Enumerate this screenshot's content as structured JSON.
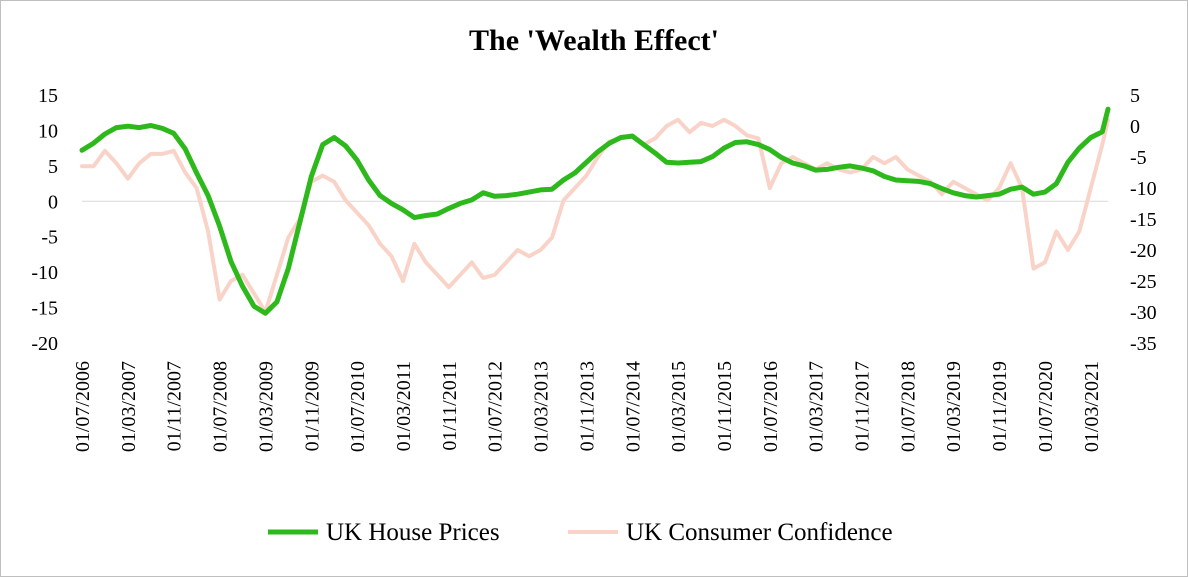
{
  "chart_data": {
    "type": "line",
    "title": "The 'Wealth Effect'",
    "xlabel": "",
    "ylabel_left": "",
    "ylabel_right": "",
    "x_tick_labels": [
      "01/07/2006",
      "01/03/2007",
      "01/11/2007",
      "01/07/2008",
      "01/03/2009",
      "01/11/2009",
      "01/07/2010",
      "01/03/2011",
      "01/11/2011",
      "01/07/2012",
      "01/03/2013",
      "01/11/2013",
      "01/07/2014",
      "01/03/2015",
      "01/11/2015",
      "01/07/2016",
      "01/03/2017",
      "01/11/2017",
      "01/07/2018",
      "01/03/2019",
      "01/11/2019",
      "01/07/2020",
      "01/03/2021"
    ],
    "x_range": [
      "2006-07",
      "2021-06"
    ],
    "y_left": {
      "ticks": [
        15,
        10,
        5,
        0,
        -5,
        -10,
        -15,
        -20
      ],
      "ylim": [
        -20,
        15
      ]
    },
    "y_right": {
      "ticks": [
        5,
        0,
        -5,
        -10,
        -15,
        -20,
        -25,
        -30,
        -35
      ],
      "ylim": [
        -35,
        5
      ]
    },
    "grid": false,
    "legend_position": "bottom",
    "series": [
      {
        "name": "UK House Prices",
        "axis": "left",
        "color": "#2db81b",
        "points": [
          [
            "2006-07",
            7.2
          ],
          [
            "2006-09",
            8.2
          ],
          [
            "2006-11",
            9.5
          ],
          [
            "2007-01",
            10.4
          ],
          [
            "2007-03",
            10.6
          ],
          [
            "2007-05",
            10.4
          ],
          [
            "2007-07",
            10.7
          ],
          [
            "2007-09",
            10.3
          ],
          [
            "2007-11",
            9.6
          ],
          [
            "2008-01",
            7.4
          ],
          [
            "2008-03",
            4.0
          ],
          [
            "2008-05",
            0.8
          ],
          [
            "2008-07",
            -3.5
          ],
          [
            "2008-09",
            -8.5
          ],
          [
            "2008-11",
            -12.0
          ],
          [
            "2009-01",
            -14.8
          ],
          [
            "2009-03",
            -15.8
          ],
          [
            "2009-05",
            -14.2
          ],
          [
            "2009-07",
            -9.5
          ],
          [
            "2009-09",
            -3.0
          ],
          [
            "2009-11",
            3.5
          ],
          [
            "2010-01",
            8.0
          ],
          [
            "2010-03",
            9.0
          ],
          [
            "2010-05",
            7.8
          ],
          [
            "2010-07",
            5.8
          ],
          [
            "2010-09",
            3.0
          ],
          [
            "2010-11",
            0.8
          ],
          [
            "2011-01",
            -0.3
          ],
          [
            "2011-03",
            -1.2
          ],
          [
            "2011-05",
            -2.3
          ],
          [
            "2011-07",
            -2.0
          ],
          [
            "2011-09",
            -1.8
          ],
          [
            "2011-11",
            -1.0
          ],
          [
            "2012-01",
            -0.3
          ],
          [
            "2012-03",
            0.2
          ],
          [
            "2012-05",
            1.2
          ],
          [
            "2012-07",
            0.7
          ],
          [
            "2012-09",
            0.8
          ],
          [
            "2012-11",
            1.0
          ],
          [
            "2013-01",
            1.3
          ],
          [
            "2013-03",
            1.6
          ],
          [
            "2013-05",
            1.7
          ],
          [
            "2013-07",
            3.0
          ],
          [
            "2013-09",
            4.0
          ],
          [
            "2013-11",
            5.5
          ],
          [
            "2014-01",
            7.0
          ],
          [
            "2014-03",
            8.2
          ],
          [
            "2014-05",
            9.0
          ],
          [
            "2014-07",
            9.2
          ],
          [
            "2014-09",
            8.0
          ],
          [
            "2014-11",
            6.8
          ],
          [
            "2015-01",
            5.5
          ],
          [
            "2015-03",
            5.4
          ],
          [
            "2015-05",
            5.5
          ],
          [
            "2015-07",
            5.6
          ],
          [
            "2015-09",
            6.3
          ],
          [
            "2015-11",
            7.5
          ],
          [
            "2016-01",
            8.3
          ],
          [
            "2016-03",
            8.4
          ],
          [
            "2016-05",
            8.0
          ],
          [
            "2016-07",
            7.3
          ],
          [
            "2016-09",
            6.2
          ],
          [
            "2016-11",
            5.4
          ],
          [
            "2017-01",
            5.0
          ],
          [
            "2017-03",
            4.4
          ],
          [
            "2017-05",
            4.5
          ],
          [
            "2017-07",
            4.8
          ],
          [
            "2017-09",
            5.0
          ],
          [
            "2017-11",
            4.7
          ],
          [
            "2018-01",
            4.3
          ],
          [
            "2018-03",
            3.5
          ],
          [
            "2018-05",
            3.0
          ],
          [
            "2018-07",
            2.9
          ],
          [
            "2018-09",
            2.8
          ],
          [
            "2018-11",
            2.5
          ],
          [
            "2019-01",
            1.8
          ],
          [
            "2019-03",
            1.2
          ],
          [
            "2019-05",
            0.8
          ],
          [
            "2019-07",
            0.6
          ],
          [
            "2019-09",
            0.8
          ],
          [
            "2019-11",
            1.0
          ],
          [
            "2020-01",
            1.7
          ],
          [
            "2020-03",
            2.0
          ],
          [
            "2020-05",
            1.0
          ],
          [
            "2020-07",
            1.3
          ],
          [
            "2020-09",
            2.5
          ],
          [
            "2020-11",
            5.5
          ],
          [
            "2021-01",
            7.5
          ],
          [
            "2021-03",
            9.0
          ],
          [
            "2021-05",
            9.8
          ],
          [
            "2021-06",
            13.0
          ]
        ]
      },
      {
        "name": "UK Consumer Confidence",
        "axis": "right",
        "color": "#f9d3c8",
        "points": [
          [
            "2006-07",
            -6.5
          ],
          [
            "2006-09",
            -6.5
          ],
          [
            "2006-11",
            -4.0
          ],
          [
            "2007-01",
            -6.0
          ],
          [
            "2007-03",
            -8.5
          ],
          [
            "2007-05",
            -6.0
          ],
          [
            "2007-07",
            -4.5
          ],
          [
            "2007-09",
            -4.5
          ],
          [
            "2007-11",
            -4.0
          ],
          [
            "2008-01",
            -7.5
          ],
          [
            "2008-03",
            -10.0
          ],
          [
            "2008-05",
            -17.0
          ],
          [
            "2008-07",
            -28.0
          ],
          [
            "2008-09",
            -25.0
          ],
          [
            "2008-11",
            -24.0
          ],
          [
            "2009-01",
            -27.0
          ],
          [
            "2009-03",
            -30.0
          ],
          [
            "2009-05",
            -24.0
          ],
          [
            "2009-07",
            -18.0
          ],
          [
            "2009-09",
            -15.0
          ],
          [
            "2009-11",
            -9.0
          ],
          [
            "2010-01",
            -8.0
          ],
          [
            "2010-03",
            -9.0
          ],
          [
            "2010-05",
            -12.0
          ],
          [
            "2010-07",
            -14.0
          ],
          [
            "2010-09",
            -16.0
          ],
          [
            "2010-11",
            -19.0
          ],
          [
            "2011-01",
            -21.0
          ],
          [
            "2011-03",
            -25.0
          ],
          [
            "2011-05",
            -19.0
          ],
          [
            "2011-07",
            -22.0
          ],
          [
            "2011-09",
            -24.0
          ],
          [
            "2011-11",
            -26.0
          ],
          [
            "2012-01",
            -24.0
          ],
          [
            "2012-03",
            -22.0
          ],
          [
            "2012-05",
            -24.5
          ],
          [
            "2012-07",
            -24.0
          ],
          [
            "2012-09",
            -22.0
          ],
          [
            "2012-11",
            -20.0
          ],
          [
            "2013-01",
            -21.0
          ],
          [
            "2013-03",
            -20.0
          ],
          [
            "2013-05",
            -18.0
          ],
          [
            "2013-07",
            -12.0
          ],
          [
            "2013-09",
            -10.0
          ],
          [
            "2013-11",
            -8.0
          ],
          [
            "2014-01",
            -5.0
          ],
          [
            "2014-03",
            -2.5
          ],
          [
            "2014-05",
            -2.0
          ],
          [
            "2014-07",
            -1.5
          ],
          [
            "2014-09",
            -3.0
          ],
          [
            "2014-11",
            -2.0
          ],
          [
            "2015-01",
            0.0
          ],
          [
            "2015-03",
            1.0
          ],
          [
            "2015-05",
            -1.0
          ],
          [
            "2015-07",
            0.5
          ],
          [
            "2015-09",
            0.0
          ],
          [
            "2015-11",
            1.0
          ],
          [
            "2016-01",
            0.0
          ],
          [
            "2016-03",
            -1.5
          ],
          [
            "2016-05",
            -2.0
          ],
          [
            "2016-07",
            -10.0
          ],
          [
            "2016-09",
            -6.0
          ],
          [
            "2016-11",
            -5.0
          ],
          [
            "2017-01",
            -6.0
          ],
          [
            "2017-03",
            -7.0
          ],
          [
            "2017-05",
            -6.0
          ],
          [
            "2017-07",
            -7.0
          ],
          [
            "2017-09",
            -7.5
          ],
          [
            "2017-11",
            -7.0
          ],
          [
            "2018-01",
            -5.0
          ],
          [
            "2018-03",
            -6.0
          ],
          [
            "2018-05",
            -5.0
          ],
          [
            "2018-07",
            -7.0
          ],
          [
            "2018-09",
            -8.0
          ],
          [
            "2018-11",
            -9.0
          ],
          [
            "2019-01",
            -11.0
          ],
          [
            "2019-03",
            -9.0
          ],
          [
            "2019-05",
            -10.0
          ],
          [
            "2019-07",
            -11.0
          ],
          [
            "2019-09",
            -12.0
          ],
          [
            "2019-11",
            -10.0
          ],
          [
            "2020-01",
            -6.0
          ],
          [
            "2020-03",
            -10.0
          ],
          [
            "2020-05",
            -23.0
          ],
          [
            "2020-07",
            -22.0
          ],
          [
            "2020-09",
            -17.0
          ],
          [
            "2020-11",
            -20.0
          ],
          [
            "2021-01",
            -17.0
          ],
          [
            "2021-03",
            -10.0
          ],
          [
            "2021-05",
            -3.0
          ],
          [
            "2021-06",
            1.0
          ]
        ]
      }
    ]
  }
}
